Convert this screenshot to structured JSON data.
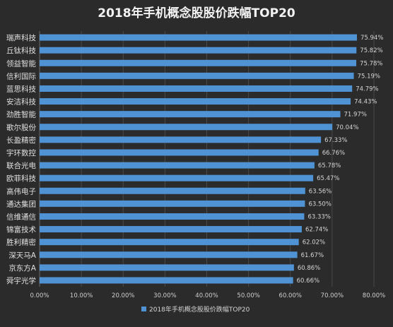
{
  "chart_data": {
    "type": "bar",
    "orientation": "horizontal",
    "title": "2018年手机概念股股价跌幅TOP20",
    "categories": [
      "瑞声科技",
      "丘钛科技",
      "领益智能",
      "信利国际",
      "蓝思科技",
      "安洁科技",
      "劲胜智能",
      "歌尔股份",
      "长盈精密",
      "宇环数控",
      "联合光电",
      "欧菲科技",
      "高伟电子",
      "通达集团",
      "信维通信",
      "锦富技术",
      "胜利精密",
      "深天马A",
      "京东方A",
      "舜宇光学"
    ],
    "series": [
      {
        "name": "2018年手机概念股股价跌幅TOP20",
        "values": [
          75.94,
          75.82,
          75.78,
          75.19,
          74.79,
          74.43,
          71.97,
          70.04,
          67.33,
          66.76,
          65.78,
          65.47,
          63.56,
          63.5,
          63.33,
          62.74,
          62.02,
          61.67,
          60.86,
          60.66
        ],
        "labels": [
          "75.94%",
          "75.82%",
          "75.78%",
          "75.19%",
          "74.79%",
          "74.43%",
          "71.97%",
          "70.04%",
          "67.33%",
          "66.76%",
          "65.78%",
          "65.47%",
          "63.56%",
          "63.50%",
          "63.33%",
          "62.74%",
          "62.02%",
          "61.67%",
          "60.86%",
          "60.66%"
        ]
      }
    ],
    "x_ticks": [
      "0.00%",
      "10.00%",
      "20.00%",
      "30.00%",
      "40.00%",
      "50.00%",
      "60.00%",
      "70.00%",
      "80.00%"
    ],
    "xlim": [
      0,
      80
    ],
    "xlabel": "",
    "ylabel": "",
    "grid": true,
    "legend_position": "bottom",
    "colors": {
      "bar": "#4f93d4",
      "background": "#2b2b2b",
      "grid": "#4a4a4a"
    }
  }
}
